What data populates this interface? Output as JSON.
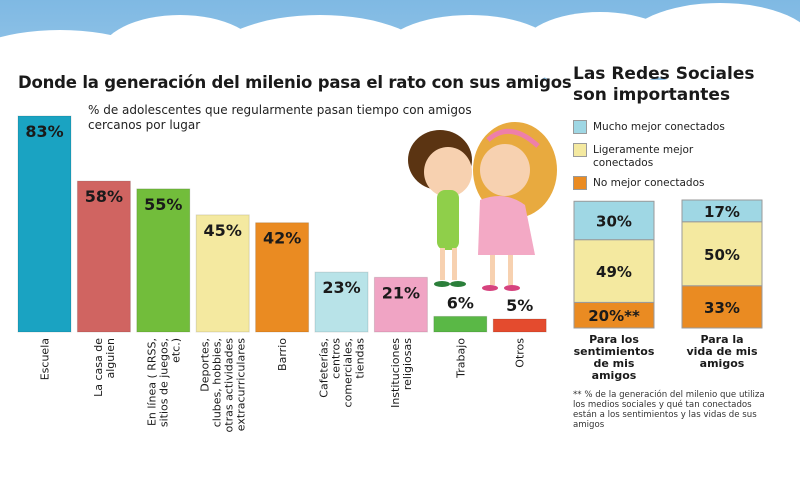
{
  "title": "Donde la generación del milenio pasa el rato con sus amigos",
  "subtitle": "% de adolescentes que regularmente pasan tiempo con amigos cercanos por lugar",
  "side_title": "Las Redes Sociales son importantes",
  "footnote": "** % de la generación del milenio que utiliza los medios sociales y qué tan conectados están a los sentimientos y las vidas de sus amigos",
  "chart_data": [
    {
      "type": "bar",
      "title": "Donde la generación del milenio pasa el rato con sus amigos",
      "subtitle": "% de adolescentes que regularmente pasan tiempo con amigos cercanos por lugar",
      "ylim": [
        0,
        83
      ],
      "grid": false,
      "categories": [
        [
          "Escuela"
        ],
        [
          "La casa de",
          "alguien"
        ],
        [
          "En línea ( RRSS,",
          "sitios de juegos,",
          "etc.)"
        ],
        [
          "Deportes,",
          "clubes, hobbies,",
          "otras actividades",
          "extracurriculares"
        ],
        [
          "Barrio"
        ],
        [
          "Cafeterías,",
          "centros",
          "comerciales,",
          "tiendas"
        ],
        [
          "Instituciones",
          "religiosas"
        ],
        [
          "Trabajo"
        ],
        [
          "Otros"
        ]
      ],
      "values": [
        83,
        58,
        55,
        45,
        42,
        23,
        21,
        6,
        5
      ],
      "value_labels": [
        "83%",
        "58%",
        "55%",
        "45%",
        "42%",
        "23%",
        "21%",
        "6%",
        "5%"
      ],
      "colors": [
        "#1aa3c2",
        "#d06461",
        "#72bd3b",
        "#f4e9a0",
        "#ea8b22",
        "#b8e3e8",
        "#f0a4c4",
        "#5ab846",
        "#e44b2e"
      ]
    },
    {
      "type": "bar",
      "stacked": true,
      "title": "Las Redes Sociales son importantes",
      "ylim": [
        0,
        100
      ],
      "legend": "top",
      "categories": [
        [
          "Para los",
          "sentimientos",
          "de mis",
          "amigos"
        ],
        [
          "Para la",
          "vida de mis",
          "amigos"
        ]
      ],
      "series": [
        {
          "name": "No mejor conectados",
          "color": "#ea8b22",
          "values": [
            20,
            33
          ],
          "labels": [
            "20%**",
            "33%"
          ]
        },
        {
          "name": "Ligeramente mejor conectados",
          "color": "#f4e9a0",
          "values": [
            49,
            50
          ],
          "labels": [
            "49%",
            "50%"
          ]
        },
        {
          "name": "Mucho mejor conectados",
          "color": "#9fd7e4",
          "values": [
            30,
            17
          ],
          "labels": [
            "30%",
            "17%"
          ]
        }
      ],
      "legend_order": [
        2,
        1,
        0
      ]
    }
  ]
}
